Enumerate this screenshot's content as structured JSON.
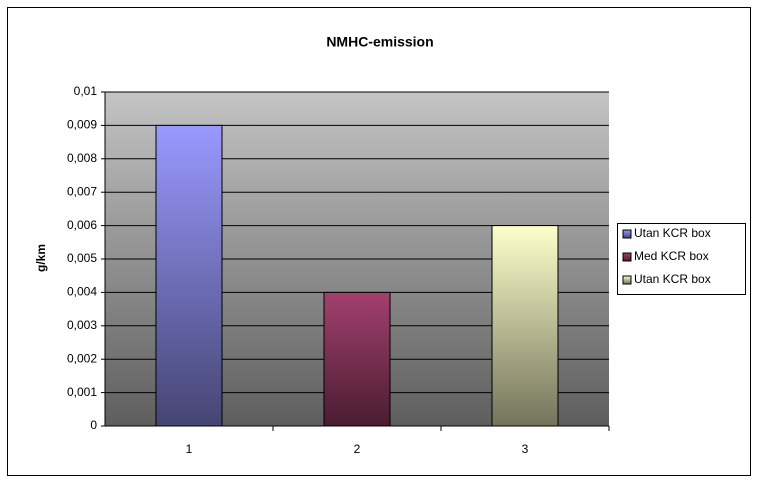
{
  "chart_data": {
    "type": "bar",
    "title": "NMHC-emission",
    "y_label": "g/km",
    "categories": [
      "1",
      "2",
      "3"
    ],
    "series": [
      {
        "name": "Utan KCR box",
        "color": "#9999ff",
        "values": [
          0.009,
          null,
          null
        ]
      },
      {
        "name": "Med KCR box",
        "color": "#a3406e",
        "values": [
          null,
          0.004,
          null
        ]
      },
      {
        "name": "Utan KCR box",
        "color": "#ffffcc",
        "values": [
          null,
          null,
          0.006
        ]
      }
    ],
    "ylim": [
      0,
      0.01
    ],
    "yticks": [
      0,
      {
        "value": 0.001,
        "label": "0,001"
      },
      {
        "value": 0.002,
        "label": "0,002"
      },
      {
        "value": 0.003,
        "label": "0,003"
      },
      {
        "value": 0.004,
        "label": "0,004"
      },
      {
        "value": 0.005,
        "label": "0,005"
      },
      {
        "value": 0.006,
        "label": "0,006"
      },
      {
        "value": 0.007,
        "label": "0,007"
      },
      {
        "value": 0.008,
        "label": "0,008"
      },
      {
        "value": 0.009,
        "label": "0,009"
      },
      {
        "value": 0.01,
        "label": "0,01"
      }
    ],
    "grid": true,
    "legend": "right"
  }
}
